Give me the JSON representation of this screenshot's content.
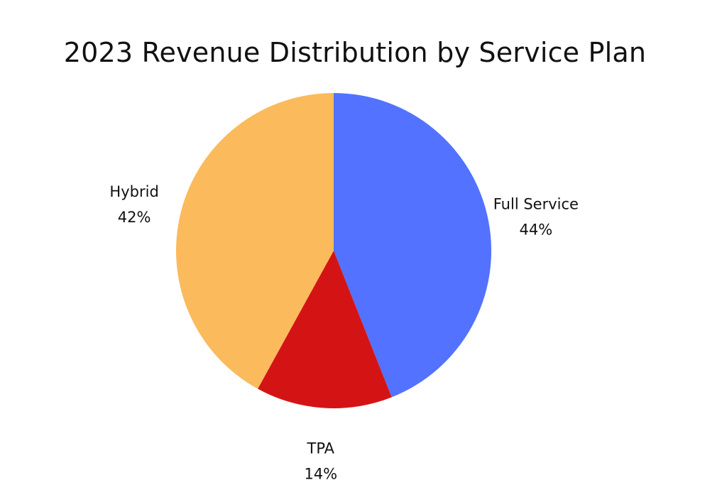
{
  "chart_data": {
    "type": "pie",
    "title": "2023 Revenue Distribution by Service Plan",
    "slices": [
      {
        "label": "Full Service",
        "value": 44,
        "value_label": "44%",
        "color": "#5272FF"
      },
      {
        "label": "TPA",
        "value": 14,
        "value_label": "14%",
        "color": "#D41414"
      },
      {
        "label": "Hybrid",
        "value": 42,
        "value_label": "42%",
        "color": "#FBBA5C"
      }
    ],
    "start_angle": "12 o'clock",
    "direction": "clockwise",
    "legend": "none"
  }
}
